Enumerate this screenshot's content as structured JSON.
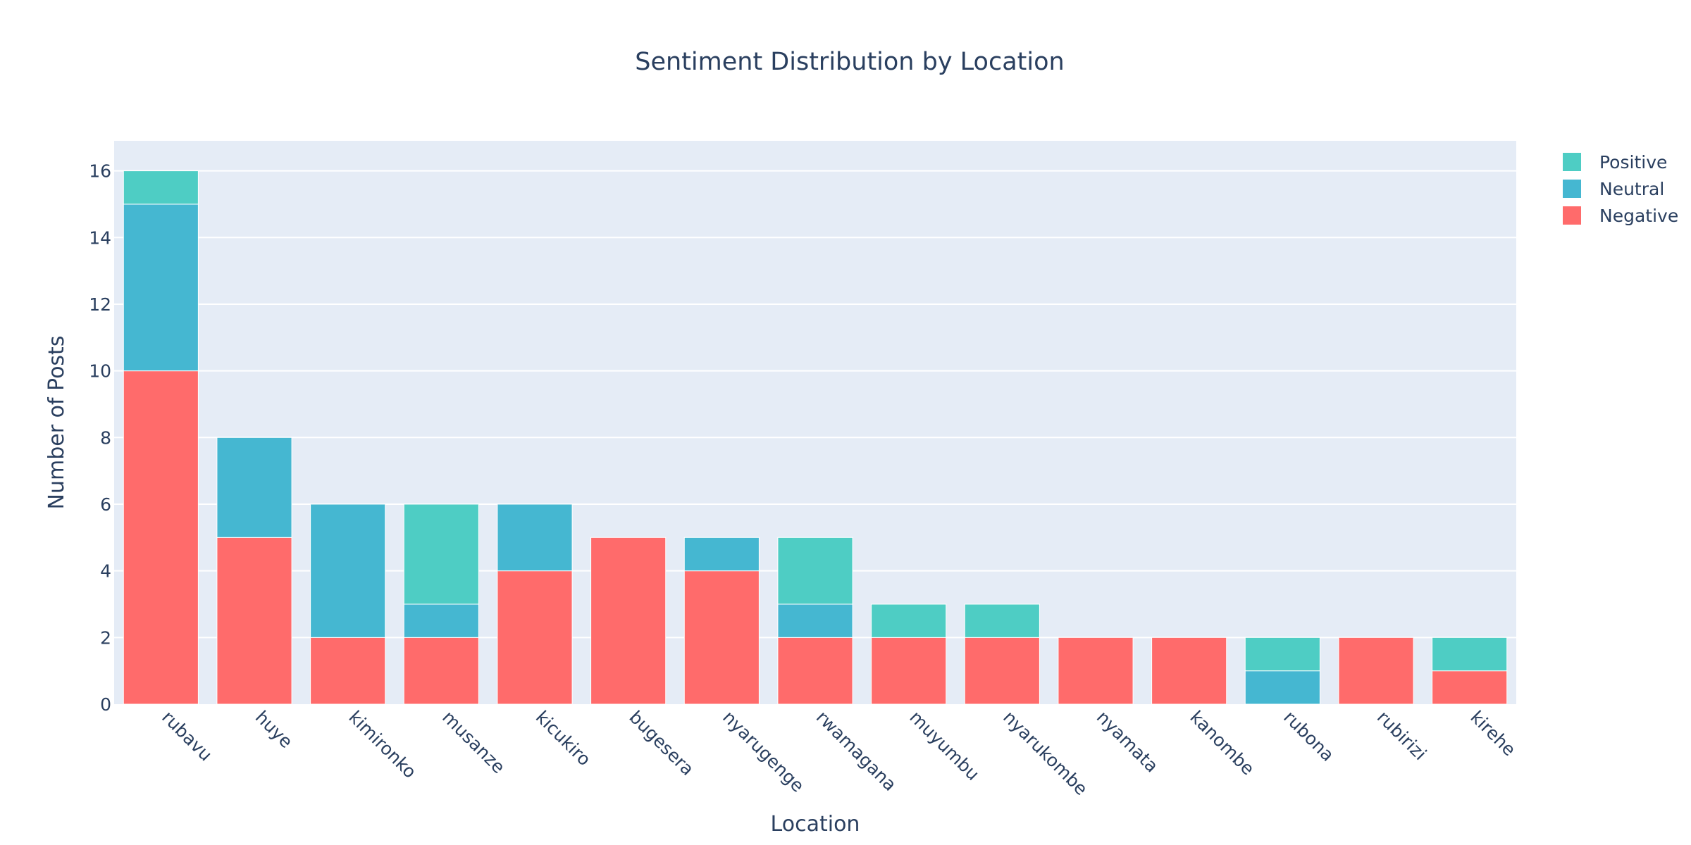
{
  "chart_data": {
    "type": "bar",
    "barmode": "stack",
    "title": "Sentiment Distribution by Location",
    "xlabel": "Location",
    "ylabel": "Number of Posts",
    "ylim": [
      0,
      16.9
    ],
    "yticks": [
      0,
      2,
      4,
      6,
      8,
      10,
      12,
      14,
      16
    ],
    "grid": true,
    "legend_position": "top-right",
    "categories": [
      "rubavu",
      "huye",
      "kimironko",
      "musanze",
      "kicukiro",
      "bugesera",
      "nyarugenge",
      "rwamagana",
      "muyumbu",
      "nyarukombe",
      "nyamata",
      "kanombe",
      "rubona",
      "rubirizi",
      "kirehe"
    ],
    "series": [
      {
        "name": "Negative",
        "color": "#ff6b6b",
        "values": [
          10,
          5,
          2,
          2,
          4,
          5,
          4,
          2,
          2,
          2,
          2,
          2,
          0,
          2,
          1
        ]
      },
      {
        "name": "Neutral",
        "color": "#45b7d1",
        "values": [
          5,
          3,
          4,
          1,
          2,
          0,
          1,
          1,
          0,
          0,
          0,
          0,
          1,
          0,
          0
        ]
      },
      {
        "name": "Positive",
        "color": "#4ecdc4",
        "values": [
          1,
          0,
          0,
          3,
          0,
          0,
          0,
          2,
          1,
          1,
          0,
          0,
          1,
          0,
          1
        ]
      }
    ],
    "legend_order": [
      "Positive",
      "Neutral",
      "Negative"
    ],
    "plot_bgcolor": "#e5ecf6",
    "gridcolor": "#ffffff"
  }
}
